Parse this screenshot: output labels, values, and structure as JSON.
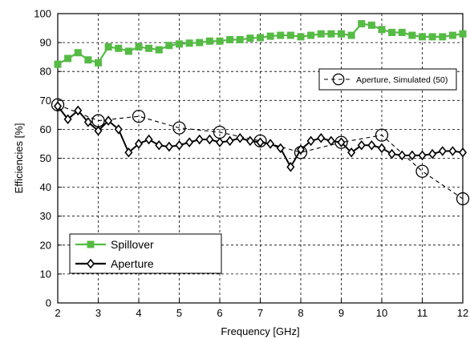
{
  "chart_data": {
    "type": "line",
    "title": "",
    "xlabel": "Frequency [GHz]",
    "ylabel": "Efficiencies [%]",
    "xlim": [
      2,
      12
    ],
    "ylim": [
      0,
      100
    ],
    "x_ticks": [
      2,
      3,
      4,
      5,
      6,
      7,
      8,
      9,
      10,
      11,
      12
    ],
    "y_ticks": [
      0,
      10,
      20,
      30,
      40,
      50,
      60,
      70,
      80,
      90,
      100
    ],
    "grid": true,
    "series": [
      {
        "name": "Spillover",
        "color": "#55bb44",
        "marker": "square",
        "line": "solid",
        "x": [
          2,
          2.25,
          2.5,
          2.75,
          3,
          3.25,
          3.5,
          3.75,
          4,
          4.25,
          4.5,
          4.75,
          5,
          5.25,
          5.5,
          5.75,
          6,
          6.25,
          6.5,
          6.75,
          7,
          7.25,
          7.5,
          7.75,
          8,
          8.25,
          8.5,
          8.75,
          9,
          9.25,
          9.5,
          9.75,
          10,
          10.25,
          10.5,
          10.75,
          11,
          11.25,
          11.5,
          11.75,
          12
        ],
        "y": [
          82.5,
          84.5,
          86.5,
          84,
          83,
          88.5,
          88,
          87,
          88.5,
          88,
          87.5,
          89,
          89.5,
          89.8,
          90,
          90.5,
          90.5,
          91,
          91,
          91.5,
          91.7,
          92.2,
          92.5,
          92.5,
          92,
          92.5,
          93,
          93,
          93,
          92.5,
          96.5,
          96,
          94.5,
          93.5,
          93.5,
          92.5,
          92,
          92,
          92,
          92.5,
          93
        ]
      },
      {
        "name": "Aperture",
        "color": "#000000",
        "marker": "diamond",
        "line": "solid",
        "x": [
          2,
          2.25,
          2.5,
          2.75,
          3,
          3.25,
          3.5,
          3.75,
          4,
          4.25,
          4.5,
          4.75,
          5,
          5.25,
          5.5,
          5.75,
          6,
          6.25,
          6.5,
          6.75,
          7,
          7.25,
          7.5,
          7.75,
          8,
          8.25,
          8.5,
          8.75,
          9,
          9.25,
          9.5,
          9.75,
          10,
          10.25,
          10.5,
          10.75,
          11,
          11.25,
          11.5,
          11.75,
          12
        ],
        "y": [
          68,
          63.5,
          66.5,
          62.5,
          59.5,
          63,
          60,
          52,
          55,
          56.5,
          54.5,
          54,
          54.5,
          55.5,
          56.5,
          56.5,
          55.5,
          56,
          57,
          56,
          55.5,
          55,
          53.5,
          47,
          53,
          56,
          57,
          56,
          55.5,
          52,
          54.5,
          54.5,
          53.5,
          51.5,
          51,
          51,
          51,
          51.5,
          52.5,
          52.5,
          52
        ]
      },
      {
        "name": "Aperture, Simulated (50)",
        "color": "#000000",
        "marker": "circle-open",
        "line": "dashed",
        "x": [
          2,
          3,
          4,
          5,
          6,
          7,
          8,
          9,
          10,
          11,
          12
        ],
        "y": [
          68.5,
          63,
          64.5,
          60.5,
          59,
          56,
          52,
          55.5,
          58,
          45.5,
          36
        ]
      }
    ],
    "legends": [
      {
        "position": "upper-right",
        "entries": [
          "Aperture, Simulated (50)"
        ]
      },
      {
        "position": "lower-left",
        "entries": [
          "Spillover",
          "Aperture"
        ]
      }
    ]
  }
}
